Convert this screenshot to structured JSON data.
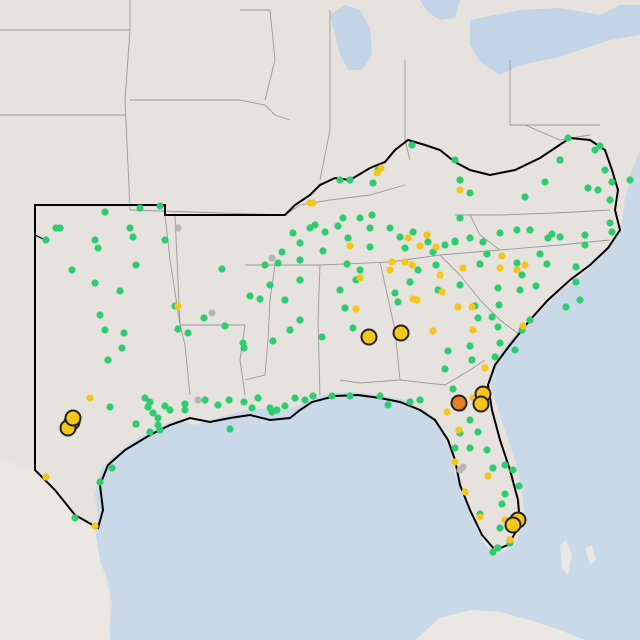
{
  "map": {
    "colors": {
      "land": "#e6e2dd",
      "land_alt": "#ebe8e4",
      "water": "#c9d9e8",
      "lake": "#c2d4e6",
      "state_border": "#9a9a9a",
      "region_outline": "#000000",
      "green": "#2ecc71",
      "yellow": "#f5c518",
      "orange": "#e67e22",
      "gray": "#b5b5b5"
    },
    "marker_types": [
      "green-dot",
      "yellow-dot",
      "gray-dot",
      "yellow-circle",
      "orange-circle"
    ],
    "marker_counts": {
      "green": 190,
      "yellow": 44,
      "gray": 7,
      "yellow_circle": 9,
      "orange_circle": 1
    }
  }
}
